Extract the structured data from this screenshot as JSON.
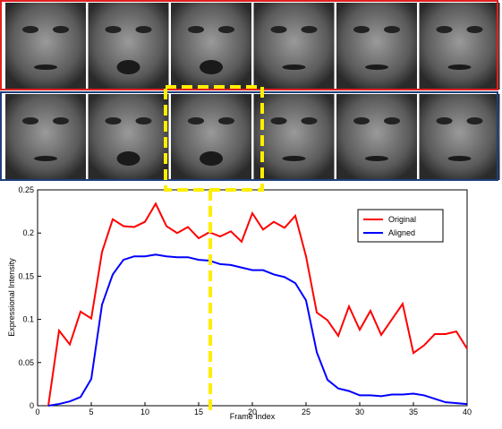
{
  "chart_data": {
    "type": "line",
    "xlabel": "Frame Index",
    "ylabel": "Expressional Intensity",
    "x": [
      1,
      2,
      3,
      4,
      5,
      6,
      7,
      8,
      9,
      10,
      11,
      12,
      13,
      14,
      15,
      16,
      17,
      18,
      19,
      20,
      21,
      22,
      23,
      24,
      25,
      26,
      27,
      28,
      29,
      30,
      31,
      32,
      33,
      34,
      35,
      36,
      37,
      38,
      39,
      40
    ],
    "series": [
      {
        "name": "Original",
        "color": "#ff0000",
        "values": [
          0,
          0.087,
          0.071,
          0.109,
          0.101,
          0.178,
          0.216,
          0.208,
          0.207,
          0.213,
          0.234,
          0.208,
          0.2,
          0.207,
          0.194,
          0.201,
          0.196,
          0.202,
          0.19,
          0.223,
          0.204,
          0.213,
          0.206,
          0.22,
          0.173,
          0.108,
          0.099,
          0.081,
          0.115,
          0.088,
          0.11,
          0.082,
          0.1,
          0.118,
          0.061,
          0.07,
          0.083,
          0.083,
          0.086,
          0.066
        ]
      },
      {
        "name": "Aligned",
        "color": "#0000ff",
        "values": [
          0,
          0.002,
          0.005,
          0.01,
          0.031,
          0.117,
          0.152,
          0.169,
          0.173,
          0.173,
          0.175,
          0.173,
          0.172,
          0.172,
          0.169,
          0.168,
          0.164,
          0.163,
          0.16,
          0.157,
          0.157,
          0.152,
          0.149,
          0.142,
          0.122,
          0.062,
          0.03,
          0.02,
          0.017,
          0.012,
          0.012,
          0.011,
          0.013,
          0.013,
          0.014,
          0.012,
          0.008,
          0.004,
          0.003,
          0.002
        ]
      }
    ],
    "xlim": [
      0,
      40
    ],
    "xticks": [
      0,
      5,
      10,
      15,
      20,
      25,
      30,
      35,
      40
    ],
    "ylim": [
      0,
      0.25
    ],
    "yticks": [
      0,
      0.05,
      0.1,
      0.15,
      0.2,
      0.25
    ],
    "legend": "upper right"
  }
}
